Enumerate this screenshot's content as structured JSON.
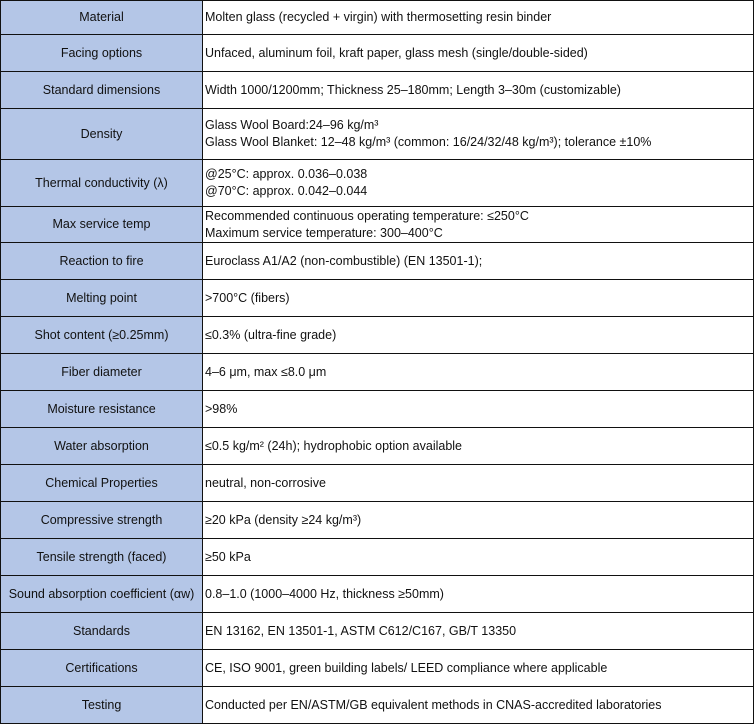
{
  "colors": {
    "label_background": "#b4c6e7",
    "border": "#111111"
  },
  "rows": [
    {
      "label": "Material",
      "lines": [
        "Molten glass (recycled + virgin)  with thermosetting resin binder"
      ]
    },
    {
      "label": "Facing options",
      "lines": [
        "Unfaced, aluminum foil, kraft paper, glass mesh (single/double-sided)"
      ]
    },
    {
      "label": "Standard dimensions",
      "lines": [
        "Width 1000/1200mm; Thickness 25–180mm; Length 3–30m (customizable)"
      ]
    },
    {
      "label": "Density",
      "lines": [
        "Glass Wool Board:24–96 kg/m³",
        "Glass Wool Blanket:  12–48 kg/m³ (common: 16/24/32/48 kg/m³); tolerance ±10%"
      ]
    },
    {
      "label": "Thermal conductivity (λ)",
      "lines": [
        "@25°C: approx. 0.036–0.038",
        "@70°C: approx. 0.042–0.044"
      ]
    },
    {
      "label": "Max service temp",
      "lines": [
        "Recommended continuous operating temperature: ≤250°C",
        "Maximum service temperature: 300–400°C"
      ]
    },
    {
      "label": "Reaction to fire",
      "lines": [
        "Euroclass A1/A2 (non-combustible) (EN 13501-1);"
      ]
    },
    {
      "label": "Melting point",
      "lines": [
        ">700°C (fibers)"
      ]
    },
    {
      "label": "Shot content (≥0.25mm)",
      "lines": [
        "≤0.3% (ultra-fine grade)"
      ]
    },
    {
      "label": "Fiber diameter",
      "lines": [
        "4–6 μm, max ≤8.0 μm"
      ]
    },
    {
      "label": "Moisture resistance",
      "lines": [
        ">98%"
      ]
    },
    {
      "label": "Water absorption",
      "lines": [
        "≤0.5 kg/m² (24h); hydrophobic option available"
      ]
    },
    {
      "label": "Chemical Properties",
      "lines": [
        "neutral, non-corrosive"
      ]
    },
    {
      "label": "Compressive strength",
      "lines": [
        "≥20 kPa (density ≥24 kg/m³)"
      ]
    },
    {
      "label": "Tensile strength (faced)",
      "lines": [
        "≥50 kPa"
      ]
    },
    {
      "label": "Sound absorption coefficient (αw)",
      "lines": [
        "0.8–1.0 (1000–4000 Hz, thickness ≥50mm)"
      ]
    },
    {
      "label": "Standards",
      "lines": [
        "EN 13162, EN 13501-1, ASTM C612/C167, GB/T 13350"
      ]
    },
    {
      "label": "Certifications",
      "lines": [
        "CE, ISO 9001, green building labels/ LEED compliance where applicable"
      ]
    },
    {
      "label": "Testing",
      "lines": [
        "Conducted per EN/ASTM/GB equivalent methods in CNAS-accredited laboratories"
      ]
    }
  ]
}
